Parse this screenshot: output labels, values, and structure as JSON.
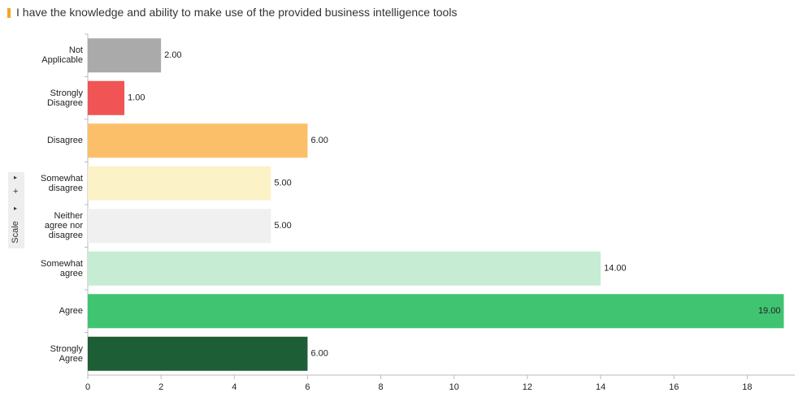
{
  "chart_data": {
    "type": "barh",
    "title": "I have the knowledge and ability to make use of the provided business intelligence tools",
    "categories": [
      "Not Applicable",
      "Strongly Disagree",
      "Disagree",
      "Somewhat disagree",
      "Neither agree nor disagree",
      "Somewhat agree",
      "Agree",
      "Strongly Agree"
    ],
    "values": [
      2,
      1,
      6,
      5,
      5,
      14,
      19,
      6
    ],
    "value_labels": [
      "2.00",
      "1.00",
      "6.00",
      "5.00",
      "5.00",
      "14.00",
      "19.00",
      "6.00"
    ],
    "colors": [
      "#aaaaaa",
      "#f05454",
      "#fbbf6a",
      "#fcf2c8",
      "#f0f0f0",
      "#c6ecd3",
      "#41c472",
      "#1e5e36"
    ],
    "xlim": [
      0,
      19.3
    ],
    "xticks": [
      0,
      2,
      4,
      6,
      8,
      10,
      12,
      14,
      16,
      18
    ],
    "grid": false
  },
  "sidebar": {
    "add": "+",
    "label": "Scale"
  }
}
